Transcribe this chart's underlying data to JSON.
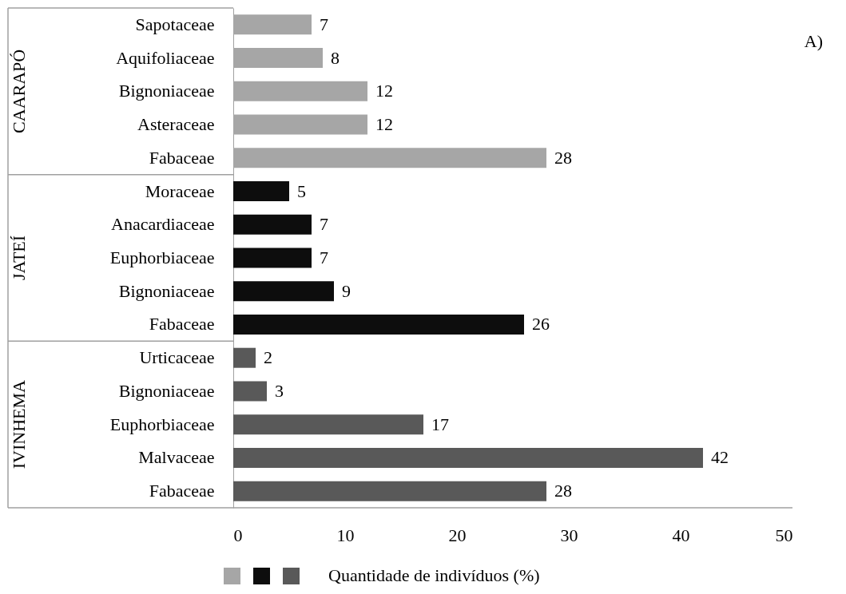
{
  "chart_data": {
    "type": "bar",
    "orientation": "horizontal",
    "categories": [
      "Sapotaceae",
      "Aquifoliaceae",
      "Bignoniaceae",
      "Asteraceae",
      "Fabaceae",
      "Moraceae",
      "Anacardiaceae",
      "Euphorbiaceae",
      "Bignoniaceae",
      "Fabaceae",
      "Urticaceae",
      "Bignoniaceae",
      "Euphorbiaceae",
      "Malvaceae",
      "Fabaceae"
    ],
    "series": [
      {
        "color": "#a6a6a6",
        "values": [
          7,
          8,
          12,
          12,
          28,
          null,
          null,
          null,
          null,
          null,
          null,
          null,
          null,
          null,
          null
        ]
      },
      {
        "color": "#0d0d0d",
        "values": [
          null,
          null,
          null,
          null,
          null,
          5,
          7,
          7,
          9,
          26,
          null,
          null,
          null,
          null,
          null
        ]
      },
      {
        "color": "#595959",
        "values": [
          null,
          null,
          null,
          null,
          null,
          null,
          null,
          null,
          null,
          null,
          2,
          3,
          17,
          42,
          28
        ]
      }
    ],
    "xlim": [
      0,
      50
    ],
    "xticks": [
      0,
      10,
      20,
      30,
      40,
      50
    ],
    "data_labels": true,
    "legend_title": "Quantidade de indivíduos (%)",
    "annotations": [
      "CAARAPÓ",
      "JATEÍ",
      "IVINHEMA",
      "A)"
    ]
  }
}
